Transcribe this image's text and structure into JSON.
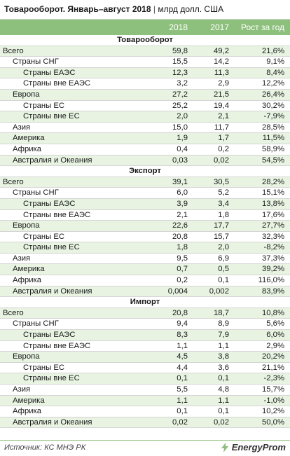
{
  "header": {
    "title": "Товарооборот. Январь–август 2018",
    "separator": "|",
    "units": "млрд долл. США"
  },
  "columns": [
    "",
    "2018",
    "2017",
    "Рост за год"
  ],
  "sections": [
    {
      "title": "Товарооборот",
      "rows": [
        {
          "name": "Всего",
          "level": 0,
          "v2018": "59,8",
          "v2017": "49,2",
          "growth": "21,6%"
        },
        {
          "name": "Страны СНГ",
          "level": 1,
          "v2018": "15,5",
          "v2017": "14,2",
          "growth": "9,1%"
        },
        {
          "name": "Страны ЕАЭС",
          "level": 2,
          "v2018": "12,3",
          "v2017": "11,3",
          "growth": "8,4%"
        },
        {
          "name": "Страны вне ЕАЭС",
          "level": 2,
          "v2018": "3,2",
          "v2017": "2,9",
          "growth": "12,2%"
        },
        {
          "name": "Европа",
          "level": 1,
          "v2018": "27,2",
          "v2017": "21,5",
          "growth": "26,4%"
        },
        {
          "name": "Страны ЕС",
          "level": 2,
          "v2018": "25,2",
          "v2017": "19,4",
          "growth": "30,2%"
        },
        {
          "name": "Страны вне ЕС",
          "level": 2,
          "v2018": "2,0",
          "v2017": "2,1",
          "growth": "-7,9%"
        },
        {
          "name": "Азия",
          "level": 1,
          "v2018": "15,0",
          "v2017": "11,7",
          "growth": "28,5%"
        },
        {
          "name": "Америка",
          "level": 1,
          "v2018": "1,9",
          "v2017": "1,7",
          "growth": "11,5%"
        },
        {
          "name": "Африка",
          "level": 1,
          "v2018": "0,4",
          "v2017": "0,2",
          "growth": "58,9%"
        },
        {
          "name": "Австралия и Океания",
          "level": 1,
          "v2018": "0,03",
          "v2017": "0,02",
          "growth": "54,5%"
        }
      ]
    },
    {
      "title": "Экспорт",
      "rows": [
        {
          "name": "Всего",
          "level": 0,
          "v2018": "39,1",
          "v2017": "30,5",
          "growth": "28,2%"
        },
        {
          "name": "Страны СНГ",
          "level": 1,
          "v2018": "6,0",
          "v2017": "5,2",
          "growth": "15,1%"
        },
        {
          "name": "Страны ЕАЭС",
          "level": 2,
          "v2018": "3,9",
          "v2017": "3,4",
          "growth": "13,8%"
        },
        {
          "name": "Страны вне ЕАЭС",
          "level": 2,
          "v2018": "2,1",
          "v2017": "1,8",
          "growth": "17,6%"
        },
        {
          "name": "Европа",
          "level": 1,
          "v2018": "22,6",
          "v2017": "17,7",
          "growth": "27,7%"
        },
        {
          "name": "Страны ЕС",
          "level": 2,
          "v2018": "20,8",
          "v2017": "15,7",
          "growth": "32,3%"
        },
        {
          "name": "Страны вне ЕС",
          "level": 2,
          "v2018": "1,8",
          "v2017": "2,0",
          "growth": "-8,2%"
        },
        {
          "name": "Азия",
          "level": 1,
          "v2018": "9,5",
          "v2017": "6,9",
          "growth": "37,3%"
        },
        {
          "name": "Америка",
          "level": 1,
          "v2018": "0,7",
          "v2017": "0,5",
          "growth": "39,2%"
        },
        {
          "name": "Африка",
          "level": 1,
          "v2018": "0,2",
          "v2017": "0,1",
          "growth": "116,0%"
        },
        {
          "name": "Австралия и Океания",
          "level": 1,
          "v2018": "0,004",
          "v2017": "0,002",
          "growth": "83,9%"
        }
      ]
    },
    {
      "title": "Импорт",
      "rows": [
        {
          "name": "Всего",
          "level": 0,
          "v2018": "20,8",
          "v2017": "18,7",
          "growth": "10,8%"
        },
        {
          "name": "Страны СНГ",
          "level": 1,
          "v2018": "9,4",
          "v2017": "8,9",
          "growth": "5,6%"
        },
        {
          "name": "Страны ЕАЭС",
          "level": 2,
          "v2018": "8,3",
          "v2017": "7,9",
          "growth": "6,0%"
        },
        {
          "name": "Страны вне ЕАЭС",
          "level": 2,
          "v2018": "1,1",
          "v2017": "1,1",
          "growth": "2,9%"
        },
        {
          "name": "Европа",
          "level": 1,
          "v2018": "4,5",
          "v2017": "3,8",
          "growth": "20,2%"
        },
        {
          "name": "Страны ЕС",
          "level": 2,
          "v2018": "4,4",
          "v2017": "3,6",
          "growth": "21,1%"
        },
        {
          "name": "Страны вне ЕС",
          "level": 2,
          "v2018": "0,1",
          "v2017": "0,1",
          "growth": "-2,3%"
        },
        {
          "name": "Азия",
          "level": 1,
          "v2018": "5,5",
          "v2017": "4,8",
          "growth": "15,7%"
        },
        {
          "name": "Америка",
          "level": 1,
          "v2018": "1,1",
          "v2017": "1,1",
          "growth": "-1,0%"
        },
        {
          "name": "Африка",
          "level": 1,
          "v2018": "0,1",
          "v2017": "0,1",
          "growth": "10,2%"
        },
        {
          "name": "Австралия и Океания",
          "level": 1,
          "v2018": "0,02",
          "v2017": "0,02",
          "growth": "50,0%"
        }
      ]
    }
  ],
  "footer": {
    "source": "Источник: КС МНЭ РК",
    "brand": "EnergyProm",
    "brand_icon": "lightning-bolt-icon"
  },
  "colors": {
    "accent_green": "#8ec07d",
    "row_alt": "#e8f3e2"
  }
}
